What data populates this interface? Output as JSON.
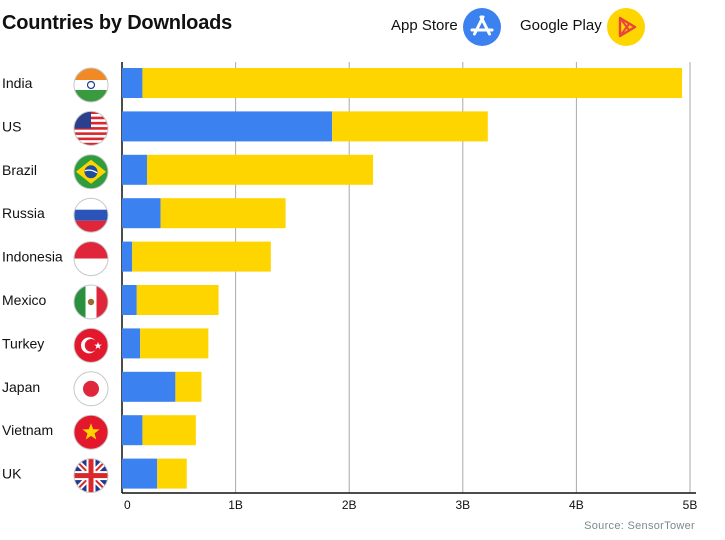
{
  "chart_data": {
    "type": "bar",
    "orientation": "horizontal",
    "stacked": true,
    "title": "Countries by Downloads",
    "categories": [
      "India",
      "US",
      "Brazil",
      "Russia",
      "Indonesia",
      "Mexico",
      "Turkey",
      "Japan",
      "Vietnam",
      "UK"
    ],
    "series": [
      {
        "name": "App Store",
        "color": "#3b82f0",
        "values": [
          0.18,
          1.85,
          0.22,
          0.34,
          0.09,
          0.13,
          0.16,
          0.47,
          0.18,
          0.31
        ]
      },
      {
        "name": "Google Play",
        "color": "#ffd500",
        "values": [
          4.75,
          1.37,
          1.99,
          1.1,
          1.22,
          0.72,
          0.6,
          0.23,
          0.47,
          0.26
        ]
      }
    ],
    "x_ticks": [
      "0",
      "1B",
      "2B",
      "3B",
      "4B",
      "5B"
    ],
    "xlim": [
      0,
      5
    ],
    "grid": true,
    "legend_position": "top-right",
    "flags": [
      "india-flag-icon",
      "us-flag-icon",
      "brazil-flag-icon",
      "russia-flag-icon",
      "indonesia-flag-icon",
      "mexico-flag-icon",
      "turkey-flag-icon",
      "japan-flag-icon",
      "vietnam-flag-icon",
      "uk-flag-icon"
    ]
  },
  "legend": {
    "app_store_label": "App Store",
    "google_play_label": "Google Play",
    "app_store_icon": "app-store-icon",
    "google_play_icon": "google-play-icon"
  },
  "source": "Source: SensorTower",
  "colors": {
    "app_store": "#3b82f0",
    "google_play": "#ffd500",
    "grid": "#a9a9a9"
  }
}
